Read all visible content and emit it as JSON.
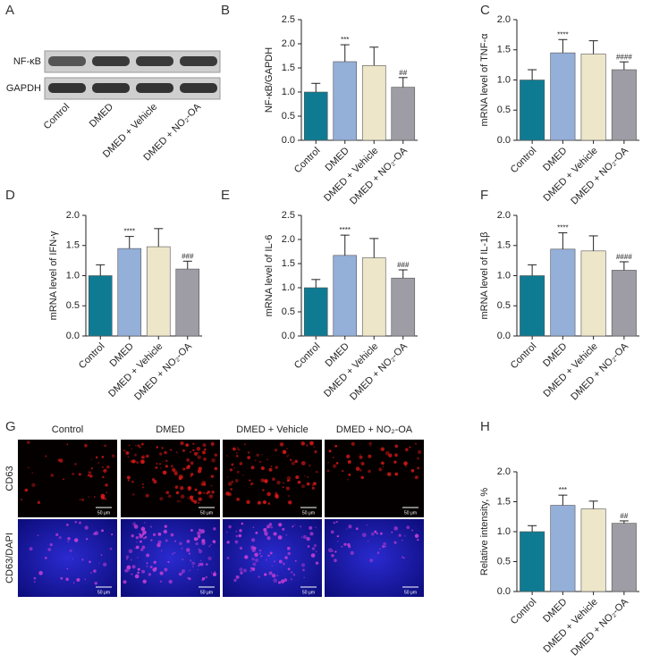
{
  "blot": {
    "label": "A",
    "rows": [
      "NF-κB",
      "GAPDH"
    ],
    "samples": [
      "Control",
      "DMED",
      "DMED + Vehicle",
      "DMED + NO₂-OA"
    ]
  },
  "images": {
    "label": "G",
    "columns": [
      "Control",
      "DMED",
      "DMED + Vehicle",
      "DMED + NO₂-OA"
    ],
    "rows": [
      "CD63",
      "CD63/DAPI"
    ],
    "scale_bar": "50 μm"
  },
  "chart_data": [
    {
      "type": "bar",
      "label": "B",
      "ylabel": "NF-κB/GAPDH",
      "categories": [
        "Control",
        "DMED",
        "DMED + Vehicle",
        "DMED + NO₂-OA"
      ],
      "colors": [
        "#0f7b93",
        "#94afd8",
        "#ede6c9",
        "#9e9da5"
      ],
      "values": [
        1.0,
        1.63,
        1.55,
        1.1
      ],
      "errors": [
        0.18,
        0.35,
        0.38,
        0.2
      ],
      "annotations": [
        null,
        "***",
        null,
        "##"
      ],
      "ylim": [
        0,
        2.5
      ],
      "yticks": [
        {
          "value": 0,
          "label": "0.0"
        },
        0.5,
        {
          "value": 1,
          "label": "1.0"
        },
        1.5,
        {
          "value": 2,
          "label": "2.0"
        },
        2.5
      ]
    },
    {
      "type": "bar",
      "label": "C",
      "ylabel": "mRNA level of TNF-α",
      "categories": [
        "Control",
        "DMED",
        "DMED + Vehicle",
        "DMED + NO₂-OA"
      ],
      "colors": [
        "#0f7b93",
        "#94afd8",
        "#ede6c9",
        "#9e9da5"
      ],
      "values": [
        1.0,
        1.45,
        1.43,
        1.17
      ],
      "errors": [
        0.17,
        0.22,
        0.22,
        0.13
      ],
      "annotations": [
        null,
        "****",
        null,
        "####"
      ],
      "ylim": [
        0,
        2
      ],
      "yticks": [
        {
          "value": 0,
          "label": "0.0"
        },
        0.5,
        {
          "value": 1,
          "label": "1.0"
        },
        1.5,
        {
          "value": 2,
          "label": "2.0"
        }
      ]
    },
    {
      "type": "bar",
      "label": "D",
      "ylabel": "mRNA level of IFN-γ",
      "categories": [
        "Control",
        "DMED",
        "DMED + Vehicle",
        "DMED + NO₂-OA"
      ],
      "colors": [
        "#0f7b93",
        "#94afd8",
        "#ede6c9",
        "#9e9da5"
      ],
      "values": [
        1.0,
        1.45,
        1.48,
        1.11
      ],
      "errors": [
        0.18,
        0.2,
        0.3,
        0.13
      ],
      "annotations": [
        null,
        "****",
        null,
        "###"
      ],
      "ylim": [
        0,
        2
      ],
      "yticks": [
        {
          "value": 0,
          "label": "0.0"
        },
        0.5,
        {
          "value": 1,
          "label": "1.0"
        },
        1.5,
        {
          "value": 2,
          "label": "2.0"
        }
      ]
    },
    {
      "type": "bar",
      "label": "E",
      "ylabel": "mRNA level of IL-6",
      "categories": [
        "Control",
        "DMED",
        "DMED + Vehicle",
        "DMED + NO₂-OA"
      ],
      "colors": [
        "#0f7b93",
        "#94afd8",
        "#ede6c9",
        "#9e9da5"
      ],
      "values": [
        1.0,
        1.67,
        1.62,
        1.2
      ],
      "errors": [
        0.17,
        0.42,
        0.4,
        0.17
      ],
      "annotations": [
        null,
        "****",
        null,
        "###"
      ],
      "ylim": [
        0,
        2.5
      ],
      "yticks": [
        {
          "value": 0,
          "label": "0.0"
        },
        0.5,
        {
          "value": 1,
          "label": "1.0"
        },
        1.5,
        {
          "value": 2,
          "label": "2.0"
        },
        2.5
      ]
    },
    {
      "type": "bar",
      "label": "F",
      "ylabel": "mRNA level of IL-1β",
      "categories": [
        "Control",
        "DMED",
        "DMED + Vehicle",
        "DMED + NO₂-OA"
      ],
      "colors": [
        "#0f7b93",
        "#94afd8",
        "#ede6c9",
        "#9e9da5"
      ],
      "values": [
        1.0,
        1.44,
        1.41,
        1.09
      ],
      "errors": [
        0.18,
        0.27,
        0.25,
        0.14
      ],
      "annotations": [
        null,
        "****",
        null,
        "####"
      ],
      "ylim": [
        0,
        2
      ],
      "yticks": [
        {
          "value": 0,
          "label": "0.0"
        },
        0.5,
        {
          "value": 1,
          "label": "1.0"
        },
        1.5,
        {
          "value": 2,
          "label": "2.0"
        }
      ]
    },
    {
      "type": "bar",
      "label": "H",
      "ylabel": "Relative intensity, %",
      "categories": [
        "Control",
        "DMED",
        "DMED + Vehicle",
        "DMED + NO₂-OA"
      ],
      "colors": [
        "#0f7b93",
        "#94afd8",
        "#ede6c9",
        "#9e9da5"
      ],
      "values": [
        1.0,
        1.44,
        1.38,
        1.14
      ],
      "errors": [
        0.1,
        0.17,
        0.13,
        0.04
      ],
      "annotations": [
        null,
        "***",
        null,
        "##"
      ],
      "ylim": [
        0,
        2
      ],
      "yticks": [
        {
          "value": 0,
          "label": "0.0"
        },
        0.5,
        {
          "value": 1,
          "label": "1.0"
        },
        1.5,
        {
          "value": 2,
          "label": "2.0"
        }
      ]
    }
  ]
}
